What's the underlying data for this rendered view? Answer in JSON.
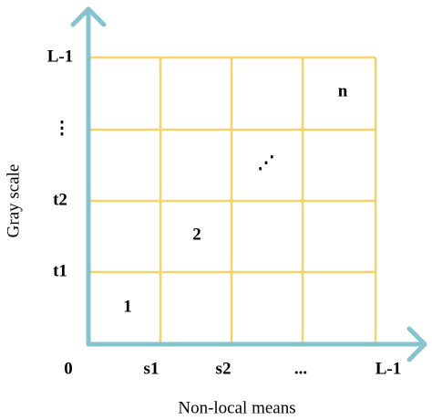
{
  "y_axis": {
    "title": "Gray scale",
    "labels": [
      "t1",
      "t2",
      "⋮",
      "L-1"
    ]
  },
  "x_axis": {
    "title": "Non-local means",
    "labels": [
      "0",
      "s1",
      "s2",
      "...",
      "L-1"
    ]
  },
  "cells": [
    "1",
    "2",
    "⋰",
    "n"
  ]
}
